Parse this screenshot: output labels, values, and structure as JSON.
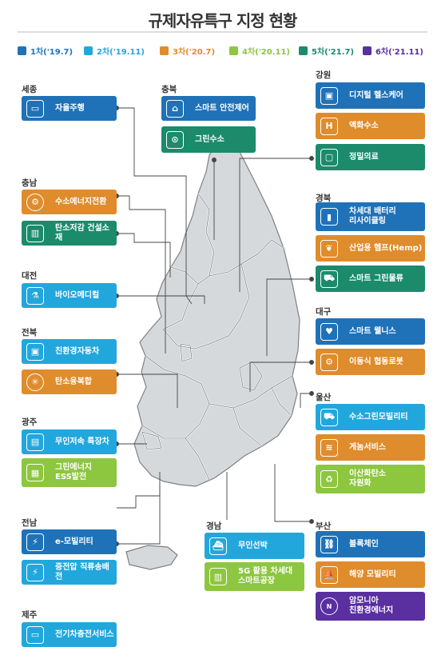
{
  "title": "규제자유특구 지정 현황",
  "colors": {
    "1차": "#1f72b8",
    "2차": "#22a7dd",
    "3차": "#df8c2c",
    "4차": "#8dc63f",
    "5차": "#1b8b6c",
    "6차": "#5a2fa0"
  },
  "legend": [
    {
      "label": "1차('19.7)",
      "color": "#1f72b8"
    },
    {
      "label": "2차('19.11)",
      "color": "#22a7dd"
    },
    {
      "label": "3차('20.7)",
      "color": "#df8c2c"
    },
    {
      "label": "4차('20.11)",
      "color": "#8dc63f"
    },
    {
      "label": "5차('21.7)",
      "color": "#1b8b6c"
    },
    {
      "label": "6차('21.11)",
      "color": "#5a2fa0"
    }
  ],
  "regions": {
    "sejong": "세종",
    "chungbuk": "충북",
    "gangwon": "강원",
    "chungnam": "충남",
    "gyeongbuk": "경북",
    "daejeon": "대전",
    "daegu": "대구",
    "jeonbuk": "전북",
    "ulsan": "울산",
    "gwangju": "광주",
    "jeonnam": "전남",
    "gyeongnam": "경남",
    "busan": "부산",
    "jeju": "제주"
  },
  "zones": {
    "sejong_1": {
      "label": "자율주행",
      "icon": "self-driving-car-icon",
      "color": "#1f72b8"
    },
    "chungbuk_1": {
      "label": "스마트 안전제어",
      "icon": "smart-safety-icon",
      "color": "#1f72b8"
    },
    "chungbuk_2": {
      "label": "그린수소",
      "icon": "hydrogen-tank-icon",
      "color": "#1b8b6c"
    },
    "gangwon_1": {
      "label": "디지털 헬스케어",
      "icon": "digital-health-icon",
      "color": "#1f72b8"
    },
    "gangwon_2": {
      "label": "액화수소",
      "icon": "liquid-hydrogen-icon",
      "color": "#df8c2c"
    },
    "gangwon_3": {
      "label": "정밀의료",
      "icon": "precision-medicine-icon",
      "color": "#1b8b6c"
    },
    "chungnam_1": {
      "label": "수소에너지전환",
      "icon": "hydrogen-energy-icon",
      "color": "#df8c2c"
    },
    "chungnam_2": {
      "label": "탄소저감 건설소재",
      "icon": "construction-material-icon",
      "color": "#1b8b6c"
    },
    "gyeongbuk_1": {
      "label": "차세대 배터리\n리사이클링",
      "icon": "battery-icon",
      "color": "#1f72b8"
    },
    "gyeongbuk_2": {
      "label": "산업용 헴프(Hemp)",
      "icon": "hemp-icon",
      "color": "#df8c2c"
    },
    "gyeongbuk_3": {
      "label": "스마트 그린물류",
      "icon": "green-logistics-icon",
      "color": "#1b8b6c"
    },
    "daejeon_1": {
      "label": "바이오메디컬",
      "icon": "bio-lab-icon",
      "color": "#22a7dd"
    },
    "daegu_1": {
      "label": "스마트 웰니스",
      "icon": "wellness-icon",
      "color": "#1f72b8"
    },
    "daegu_2": {
      "label": "이동식 협동로봇",
      "icon": "robot-arm-icon",
      "color": "#df8c2c"
    },
    "jeonbuk_1": {
      "label": "친환경자동차",
      "icon": "eco-car-icon",
      "color": "#22a7dd"
    },
    "jeonbuk_2": {
      "label": "탄소융복합",
      "icon": "carbon-atom-icon",
      "color": "#df8c2c"
    },
    "ulsan_1": {
      "label": "수소그린모빌리티",
      "icon": "hydrogen-mobility-icon",
      "color": "#22a7dd"
    },
    "ulsan_2": {
      "label": "게놈서비스",
      "icon": "genome-icon",
      "color": "#df8c2c"
    },
    "ulsan_3": {
      "label": "이산화탄소\n자원화",
      "icon": "co2-recycle-icon",
      "color": "#8dc63f"
    },
    "gwangju_1": {
      "label": "무인저속 특장차",
      "icon": "special-vehicle-icon",
      "color": "#22a7dd"
    },
    "gwangju_2": {
      "label": "그린에너지\nESS발전",
      "icon": "ess-battery-icon",
      "color": "#8dc63f"
    },
    "jeonnam_1": {
      "label": "e-모빌리티",
      "icon": "e-mobility-icon",
      "color": "#1f72b8"
    },
    "jeonnam_2": {
      "label": "중전압 직류송배전",
      "icon": "power-transmission-icon",
      "color": "#22a7dd"
    },
    "gyeongnam_1": {
      "label": "무인선박",
      "icon": "unmanned-ship-icon",
      "color": "#22a7dd"
    },
    "gyeongnam_2": {
      "label": "5G 활용 차세대\n스마트공장",
      "icon": "smart-factory-icon",
      "color": "#8dc63f"
    },
    "busan_1": {
      "label": "블록체인",
      "icon": "blockchain-icon",
      "color": "#1f72b8"
    },
    "busan_2": {
      "label": "해양 모빌리티",
      "icon": "marine-mobility-icon",
      "color": "#df8c2c"
    },
    "busan_3": {
      "label": "암모니아\n친환경에너지",
      "icon": "ammonia-icon",
      "color": "#5a2fa0"
    },
    "jeju_1": {
      "label": "전기차충전서비스",
      "icon": "ev-charging-icon",
      "color": "#22a7dd"
    }
  }
}
